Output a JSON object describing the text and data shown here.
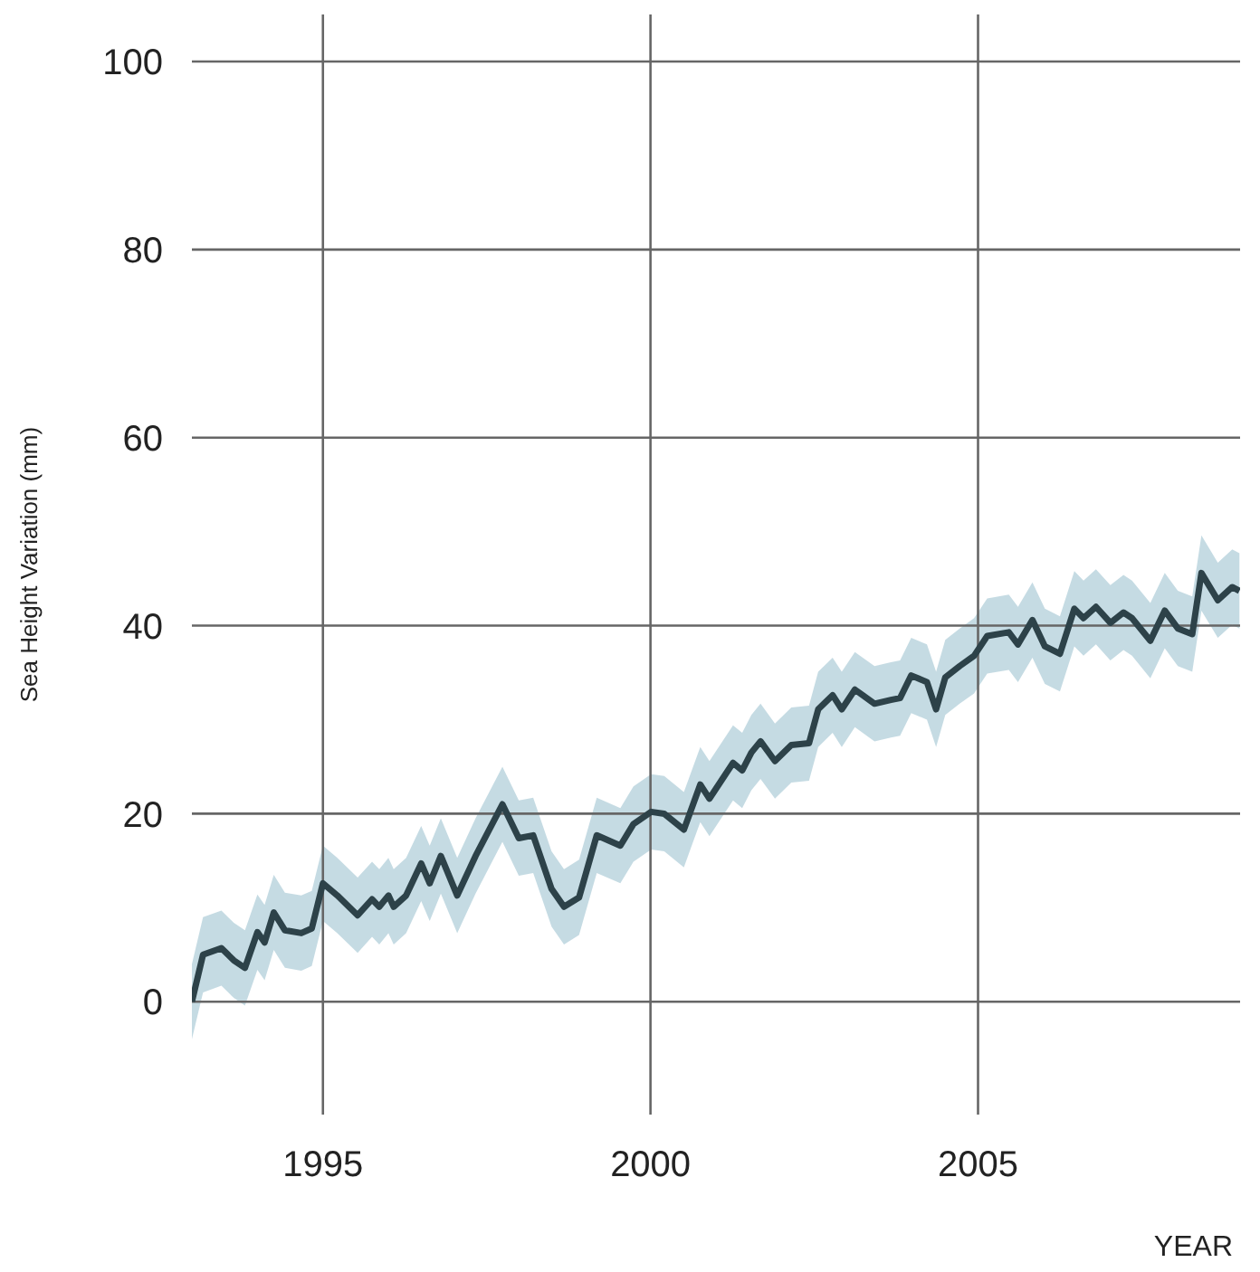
{
  "chart_data": {
    "type": "line",
    "xlabel": "YEAR",
    "ylabel": "Sea Height Variation (mm)",
    "x": [
      1993.0,
      1993.17,
      1993.45,
      1993.64,
      1993.81,
      1994.0,
      1994.11,
      1994.25,
      1994.42,
      1994.67,
      1994.83,
      1995.0,
      1995.22,
      1995.53,
      1995.75,
      1995.86,
      1996.0,
      1996.08,
      1996.27,
      1996.5,
      1996.63,
      1996.8,
      1997.05,
      1997.33,
      1997.74,
      1997.99,
      1998.21,
      1998.49,
      1998.68,
      1998.91,
      1999.18,
      1999.54,
      1999.74,
      2000.01,
      2000.21,
      2000.51,
      2000.76,
      2000.9,
      2001.26,
      2001.4,
      2001.54,
      2001.68,
      2001.9,
      2002.15,
      2002.42,
      2002.56,
      2002.78,
      2002.92,
      2003.12,
      2003.42,
      2003.67,
      2003.81,
      2003.98,
      2004.22,
      2004.36,
      2004.5,
      2004.72,
      2004.94,
      2005.14,
      2005.47,
      2005.61,
      2005.83,
      2006.02,
      2006.25,
      2006.47,
      2006.61,
      2006.8,
      2007.02,
      2007.22,
      2007.35,
      2007.63,
      2007.85,
      2008.05,
      2008.27,
      2008.41,
      2008.66,
      2008.88,
      2008.99
    ],
    "series": [
      {
        "color": "#2d4249",
        "values": [
          0,
          5.0,
          5.7,
          4.4,
          3.6,
          7.4,
          6.3,
          9.5,
          7.6,
          7.3,
          7.8,
          12.6,
          11.3,
          9.2,
          10.9,
          10.1,
          11.3,
          10.1,
          11.3,
          14.7,
          12.6,
          15.5,
          11.3,
          15.5,
          21.0,
          17.4,
          17.7,
          12.0,
          10.1,
          11.1,
          17.7,
          16.6,
          18.9,
          20.2,
          20.0,
          18.3,
          23.1,
          21.6,
          25.4,
          24.6,
          26.5,
          27.7,
          25.6,
          27.3,
          27.5,
          31.1,
          32.6,
          31.1,
          33.2,
          31.7,
          32.1,
          32.3,
          34.7,
          34.0,
          31.1,
          34.5,
          35.7,
          36.8,
          38.9,
          39.3,
          38.0,
          40.6,
          37.8,
          37.0,
          41.8,
          40.8,
          42.0,
          40.3,
          41.4,
          40.8,
          38.4,
          41.6,
          39.7,
          39.1,
          45.6,
          42.7,
          44.1,
          43.7
        ],
        "lower": [
          -4,
          1.0,
          1.7,
          0.4,
          -0.4,
          3.4,
          2.3,
          5.5,
          3.6,
          3.3,
          3.8,
          8.6,
          7.3,
          5.2,
          6.9,
          6.1,
          7.3,
          6.1,
          7.3,
          10.7,
          8.6,
          11.5,
          7.3,
          11.5,
          17.0,
          13.4,
          13.7,
          8.0,
          6.1,
          7.1,
          13.7,
          12.6,
          14.9,
          16.2,
          16.0,
          14.3,
          19.1,
          17.6,
          21.4,
          20.6,
          22.5,
          23.7,
          21.6,
          23.3,
          23.5,
          27.1,
          28.6,
          27.1,
          29.2,
          27.7,
          28.1,
          28.3,
          30.7,
          30.0,
          27.1,
          30.5,
          31.7,
          32.8,
          34.9,
          35.3,
          34.0,
          36.6,
          33.8,
          33.0,
          37.8,
          36.8,
          38.0,
          36.3,
          37.4,
          36.8,
          34.4,
          37.6,
          35.7,
          35.1,
          41.6,
          38.7,
          40.1,
          39.7
        ],
        "upper": [
          4,
          9.0,
          9.7,
          8.4,
          7.6,
          11.4,
          10.3,
          13.5,
          11.6,
          11.3,
          11.8,
          16.6,
          15.3,
          13.2,
          14.9,
          14.1,
          15.3,
          14.1,
          15.3,
          18.7,
          16.6,
          19.5,
          15.3,
          19.5,
          25.0,
          21.4,
          21.7,
          16.0,
          14.1,
          15.1,
          21.7,
          20.6,
          22.9,
          24.2,
          24.0,
          22.3,
          27.1,
          25.6,
          29.4,
          28.6,
          30.5,
          31.7,
          29.6,
          31.3,
          31.5,
          35.1,
          36.6,
          35.1,
          37.2,
          35.7,
          36.1,
          36.3,
          38.7,
          38.0,
          35.1,
          38.5,
          39.7,
          40.8,
          42.9,
          43.3,
          42.0,
          44.6,
          41.8,
          41.0,
          45.8,
          44.8,
          46.0,
          44.3,
          45.4,
          44.8,
          42.4,
          45.6,
          43.7,
          43.1,
          49.6,
          46.7,
          48.1,
          47.7
        ]
      }
    ],
    "xlim": [
      1993,
      2009
    ],
    "xticks": [
      1995,
      2000,
      2005
    ],
    "ylim": [
      -12,
      105
    ],
    "yticks": [
      0,
      20,
      40,
      60,
      80,
      100
    ],
    "grid": true,
    "legend": false,
    "marker": "none",
    "line_style": "solid"
  }
}
